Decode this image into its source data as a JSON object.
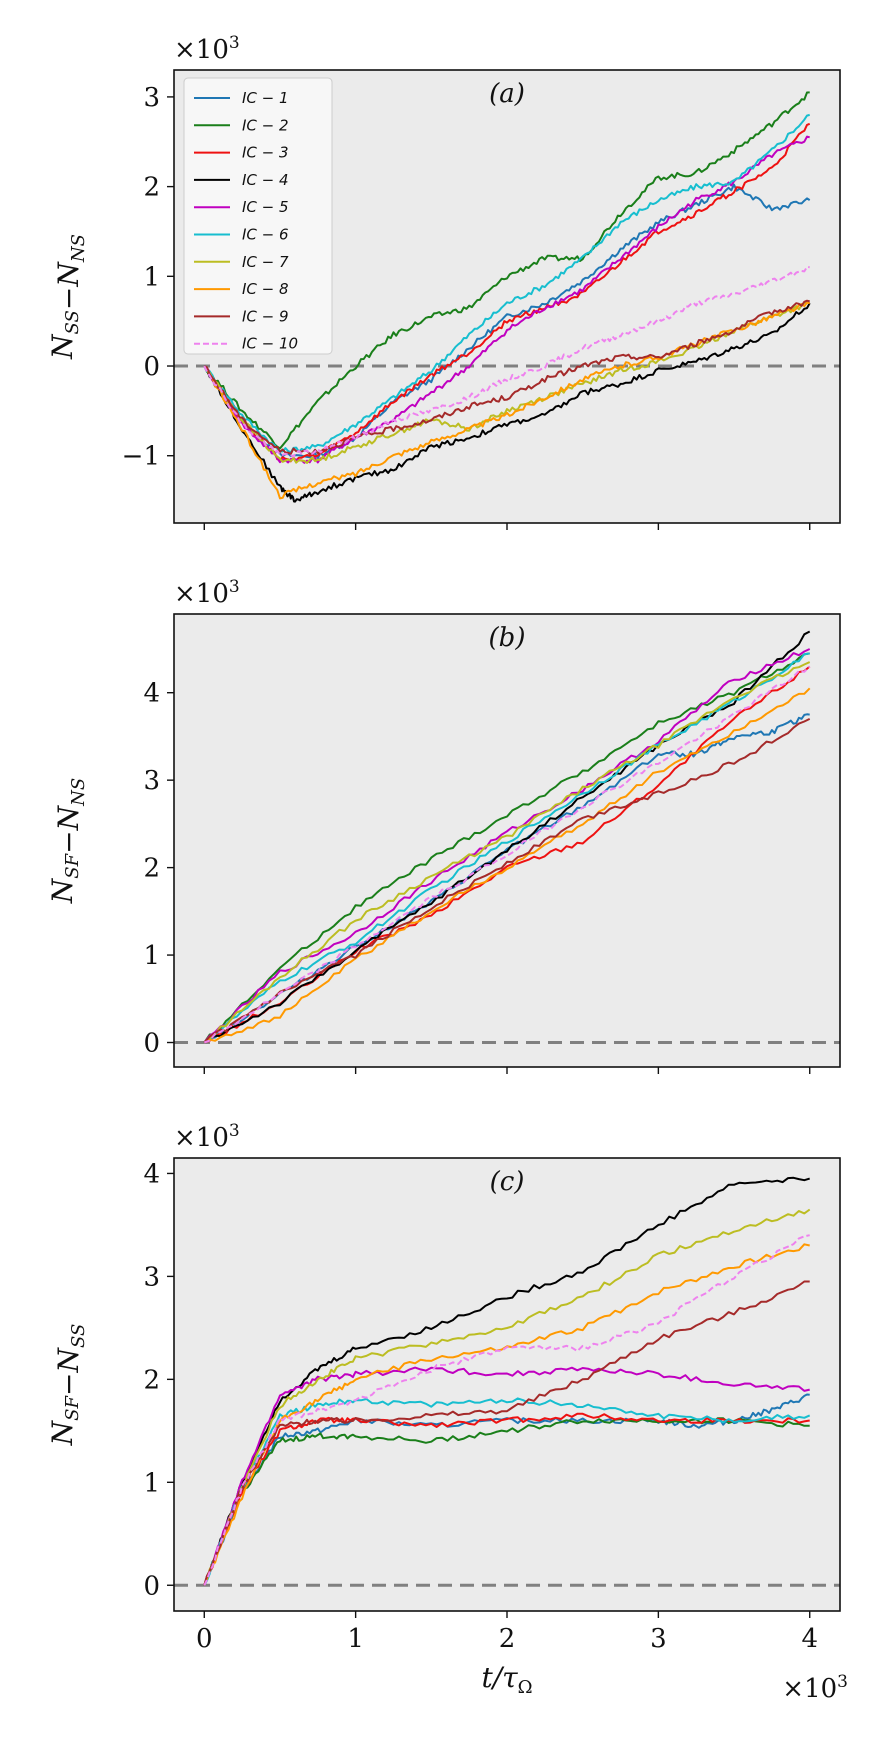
{
  "chart_data": [
    {
      "type": "line",
      "panel_label": "(a)",
      "ylabel": "N_SS − N_NS",
      "xlim": [
        -0.2,
        4.2
      ],
      "ylim": [
        -1.75,
        3.3
      ],
      "yticks": [
        -1,
        0,
        1,
        2,
        3
      ],
      "y_multiplier": "×10³",
      "x_scale_note": "×10³",
      "legend_position": "top-left",
      "reference_line": 0,
      "series": [
        {
          "name": "IC-1",
          "color": "#1f77b4",
          "x": [
            0,
            0.25,
            0.5,
            0.75,
            1.0,
            1.25,
            1.5,
            1.75,
            2.0,
            2.25,
            2.5,
            2.75,
            3.0,
            3.25,
            3.5,
            3.75,
            4.0
          ],
          "values": [
            0,
            -0.6,
            -1.0,
            -1.0,
            -0.8,
            -0.4,
            -0.15,
            0.2,
            0.55,
            0.7,
            0.95,
            1.3,
            1.6,
            1.8,
            2.0,
            1.75,
            1.85
          ]
        },
        {
          "name": "IC-2",
          "color": "#1a7f1a",
          "x": [
            0,
            0.25,
            0.5,
            0.75,
            1.0,
            1.25,
            1.5,
            1.75,
            2.0,
            2.25,
            2.5,
            2.75,
            3.0,
            3.25,
            3.5,
            3.75,
            4.0
          ],
          "values": [
            0,
            -0.5,
            -0.9,
            -0.4,
            0.0,
            0.35,
            0.55,
            0.65,
            1.0,
            1.2,
            1.2,
            1.7,
            2.1,
            2.15,
            2.4,
            2.7,
            3.05
          ]
        },
        {
          "name": "IC-3",
          "color": "#ee1111",
          "x": [
            0,
            0.25,
            0.5,
            0.75,
            1.0,
            1.25,
            1.5,
            1.75,
            2.0,
            2.25,
            2.5,
            2.75,
            3.0,
            3.25,
            3.5,
            3.75,
            4.0
          ],
          "values": [
            0,
            -0.6,
            -1.05,
            -1.0,
            -0.75,
            -0.4,
            -0.1,
            0.15,
            0.5,
            0.65,
            0.8,
            1.15,
            1.5,
            1.7,
            1.95,
            2.2,
            2.7
          ]
        },
        {
          "name": "IC-4",
          "color": "#000000",
          "x": [
            0,
            0.25,
            0.5,
            0.6,
            0.75,
            1.0,
            1.25,
            1.5,
            1.75,
            2.0,
            2.25,
            2.5,
            2.75,
            3.0,
            3.25,
            3.5,
            3.75,
            4.0
          ],
          "values": [
            0,
            -0.7,
            -1.35,
            -1.5,
            -1.4,
            -1.25,
            -1.15,
            -0.9,
            -0.8,
            -0.65,
            -0.55,
            -0.3,
            -0.2,
            -0.05,
            0.05,
            0.2,
            0.35,
            0.7
          ]
        },
        {
          "name": "IC-5",
          "color": "#c000c0",
          "x": [
            0,
            0.25,
            0.5,
            0.75,
            1.0,
            1.25,
            1.5,
            1.75,
            2.0,
            2.25,
            2.5,
            2.75,
            3.0,
            3.25,
            3.5,
            3.75,
            4.0
          ],
          "values": [
            0,
            -0.65,
            -1.05,
            -1.05,
            -0.8,
            -0.6,
            -0.3,
            0.0,
            0.4,
            0.65,
            0.85,
            1.2,
            1.55,
            1.85,
            2.05,
            2.35,
            2.55
          ]
        },
        {
          "name": "IC-6",
          "color": "#17becf",
          "x": [
            0,
            0.25,
            0.5,
            0.75,
            1.0,
            1.25,
            1.5,
            1.75,
            2.0,
            2.25,
            2.5,
            2.75,
            3.0,
            3.25,
            3.5,
            3.75,
            4.0
          ],
          "values": [
            0,
            -0.55,
            -0.95,
            -0.9,
            -0.65,
            -0.35,
            -0.05,
            0.35,
            0.7,
            0.9,
            1.2,
            1.6,
            1.85,
            2.0,
            2.05,
            2.4,
            2.8
          ]
        },
        {
          "name": "IC-7",
          "color": "#bcbd22",
          "x": [
            0,
            0.25,
            0.5,
            0.75,
            1.0,
            1.25,
            1.5,
            1.75,
            2.0,
            2.25,
            2.5,
            2.75,
            3.0,
            3.25,
            3.5,
            3.75,
            4.0
          ],
          "values": [
            0,
            -0.6,
            -1.05,
            -1.05,
            -0.9,
            -0.75,
            -0.6,
            -0.7,
            -0.5,
            -0.35,
            -0.2,
            -0.05,
            0.05,
            0.2,
            0.4,
            0.55,
            0.7
          ]
        },
        {
          "name": "IC-8",
          "color": "#ff9900",
          "x": [
            0,
            0.25,
            0.5,
            0.75,
            1.0,
            1.25,
            1.5,
            1.75,
            2.0,
            2.25,
            2.5,
            2.75,
            3.0,
            3.25,
            3.5,
            3.75,
            4.0
          ],
          "values": [
            0,
            -0.7,
            -1.45,
            -1.3,
            -1.2,
            -1.0,
            -0.85,
            -0.7,
            -0.55,
            -0.35,
            -0.15,
            0.0,
            0.1,
            0.25,
            0.4,
            0.55,
            0.7
          ]
        },
        {
          "name": "IC-9",
          "color": "#a52a2a",
          "x": [
            0,
            0.25,
            0.5,
            0.75,
            1.0,
            1.25,
            1.5,
            1.75,
            2.0,
            2.25,
            2.5,
            2.75,
            3.0,
            3.25,
            3.5,
            3.75,
            4.0
          ],
          "values": [
            0,
            -0.6,
            -0.95,
            -0.95,
            -0.8,
            -0.7,
            -0.6,
            -0.45,
            -0.35,
            -0.15,
            0.0,
            0.1,
            0.1,
            0.25,
            0.4,
            0.6,
            0.72
          ]
        },
        {
          "name": "IC-10",
          "color": "#ee82ee",
          "dashed": true,
          "x": [
            0,
            0.25,
            0.5,
            0.75,
            1.0,
            1.25,
            1.5,
            1.75,
            2.0,
            2.25,
            2.5,
            2.75,
            3.0,
            3.25,
            3.5,
            3.75,
            4.0
          ],
          "values": [
            0,
            -0.65,
            -1.0,
            -0.95,
            -0.8,
            -0.6,
            -0.5,
            -0.35,
            -0.15,
            0.0,
            0.2,
            0.35,
            0.5,
            0.7,
            0.8,
            0.95,
            1.1
          ]
        }
      ]
    },
    {
      "type": "line",
      "panel_label": "(b)",
      "ylabel": "N_SF − N_NS",
      "xlim": [
        -0.2,
        4.2
      ],
      "ylim": [
        -0.28,
        4.9
      ],
      "yticks": [
        0,
        1,
        2,
        3,
        4
      ],
      "y_multiplier": "×10³",
      "reference_line": 0,
      "series": [
        {
          "name": "IC-1",
          "color": "#1f77b4",
          "x": [
            0,
            0.5,
            1.0,
            1.5,
            2.0,
            2.5,
            3.0,
            3.25,
            3.5,
            3.75,
            4.0
          ],
          "values": [
            0,
            0.55,
            1.1,
            1.6,
            2.2,
            2.7,
            3.3,
            3.3,
            3.5,
            3.55,
            3.75
          ]
        },
        {
          "name": "IC-2",
          "color": "#1a7f1a",
          "x": [
            0,
            0.5,
            1.0,
            1.5,
            2.0,
            2.5,
            3.0,
            3.5,
            4.0
          ],
          "values": [
            0,
            0.85,
            1.55,
            2.1,
            2.6,
            3.1,
            3.65,
            4.0,
            4.45
          ]
        },
        {
          "name": "IC-3",
          "color": "#ee1111",
          "x": [
            0,
            0.5,
            1.0,
            1.5,
            2.0,
            2.5,
            3.0,
            3.5,
            4.0
          ],
          "values": [
            0,
            0.45,
            1.05,
            1.45,
            2.0,
            2.3,
            2.95,
            3.7,
            4.3
          ]
        },
        {
          "name": "IC-4",
          "color": "#000000",
          "x": [
            0,
            0.5,
            1.0,
            1.5,
            2.0,
            2.5,
            3.0,
            3.5,
            4.0
          ],
          "values": [
            0,
            0.45,
            1.05,
            1.6,
            2.2,
            2.8,
            3.4,
            3.9,
            4.7
          ]
        },
        {
          "name": "IC-5",
          "color": "#c000c0",
          "x": [
            0,
            0.5,
            1.0,
            1.5,
            2.0,
            2.5,
            3.0,
            3.5,
            4.0
          ],
          "values": [
            0,
            0.8,
            1.25,
            1.85,
            2.4,
            2.9,
            3.45,
            4.15,
            4.5
          ]
        },
        {
          "name": "IC-6",
          "color": "#17becf",
          "x": [
            0,
            0.5,
            1.0,
            1.5,
            2.0,
            2.5,
            3.0,
            3.5,
            4.0
          ],
          "values": [
            0,
            0.7,
            1.15,
            1.75,
            2.3,
            2.85,
            3.4,
            3.9,
            4.45
          ]
        },
        {
          "name": "IC-7",
          "color": "#bcbd22",
          "x": [
            0,
            0.5,
            1.0,
            1.5,
            2.0,
            2.5,
            3.0,
            3.5,
            4.0
          ],
          "values": [
            0,
            0.75,
            1.4,
            1.9,
            2.35,
            2.9,
            3.4,
            3.95,
            4.35
          ]
        },
        {
          "name": "IC-8",
          "color": "#ff9900",
          "x": [
            0,
            0.5,
            1.0,
            1.5,
            2.0,
            2.5,
            3.0,
            3.5,
            4.0
          ],
          "values": [
            0,
            0.3,
            0.95,
            1.5,
            2.0,
            2.5,
            3.1,
            3.55,
            4.05
          ]
        },
        {
          "name": "IC-9",
          "color": "#a52a2a",
          "x": [
            0,
            0.5,
            1.0,
            1.5,
            2.0,
            2.5,
            3.0,
            3.5,
            4.0
          ],
          "values": [
            0,
            0.55,
            1.0,
            1.55,
            2.05,
            2.55,
            2.85,
            3.2,
            3.7
          ]
        },
        {
          "name": "IC-10",
          "color": "#ee82ee",
          "dashed": true,
          "x": [
            0,
            0.5,
            1.0,
            1.5,
            2.0,
            2.5,
            3.0,
            3.5,
            4.0
          ],
          "values": [
            0,
            0.55,
            1.1,
            1.65,
            2.15,
            2.7,
            3.2,
            3.75,
            4.3
          ]
        }
      ]
    },
    {
      "type": "line",
      "panel_label": "(c)",
      "xlabel": "t/τ_Ω",
      "ylabel": "N_SF − N_SS",
      "xlim": [
        -0.2,
        4.2
      ],
      "ylim": [
        -0.25,
        4.15
      ],
      "yticks": [
        0,
        1,
        2,
        3,
        4
      ],
      "xticks": [
        0,
        1,
        2,
        3,
        4
      ],
      "y_multiplier": "×10³",
      "x_multiplier": "×10³",
      "reference_line": 0,
      "series": [
        {
          "name": "IC-1",
          "color": "#1f77b4",
          "x": [
            0,
            0.25,
            0.5,
            0.75,
            1.0,
            1.5,
            2.0,
            2.5,
            3.0,
            3.25,
            3.5,
            3.75,
            4.0
          ],
          "values": [
            0,
            0.9,
            1.45,
            1.5,
            1.6,
            1.55,
            1.6,
            1.6,
            1.6,
            1.55,
            1.6,
            1.7,
            1.85
          ]
        },
        {
          "name": "IC-2",
          "color": "#1a7f1a",
          "x": [
            0,
            0.25,
            0.5,
            0.75,
            1.0,
            1.5,
            2.0,
            2.5,
            3.0,
            3.5,
            4.0
          ],
          "values": [
            0,
            0.9,
            1.4,
            1.45,
            1.45,
            1.4,
            1.5,
            1.6,
            1.6,
            1.6,
            1.55
          ]
        },
        {
          "name": "IC-3",
          "color": "#ee1111",
          "x": [
            0,
            0.25,
            0.5,
            0.75,
            1.0,
            1.5,
            2.0,
            2.5,
            3.0,
            3.5,
            4.0
          ],
          "values": [
            0,
            0.9,
            1.5,
            1.6,
            1.6,
            1.55,
            1.6,
            1.65,
            1.6,
            1.6,
            1.6
          ]
        },
        {
          "name": "IC-4",
          "color": "#000000",
          "x": [
            0,
            0.25,
            0.5,
            0.75,
            1.0,
            1.5,
            2.0,
            2.5,
            3.0,
            3.5,
            4.0
          ],
          "values": [
            0,
            1.0,
            1.8,
            2.1,
            2.3,
            2.5,
            2.8,
            3.05,
            3.5,
            3.9,
            3.95
          ]
        },
        {
          "name": "IC-5",
          "color": "#c000c0",
          "x": [
            0,
            0.25,
            0.5,
            0.75,
            1.0,
            1.5,
            2.0,
            2.5,
            3.0,
            3.5,
            4.0
          ],
          "values": [
            0,
            1.0,
            1.85,
            2.0,
            2.05,
            2.1,
            2.05,
            2.1,
            2.05,
            1.95,
            1.9
          ]
        },
        {
          "name": "IC-6",
          "color": "#17becf",
          "x": [
            0,
            0.25,
            0.5,
            0.75,
            1.0,
            1.5,
            2.0,
            2.5,
            3.0,
            3.5,
            4.0
          ],
          "values": [
            0,
            0.95,
            1.65,
            1.75,
            1.8,
            1.75,
            1.8,
            1.75,
            1.65,
            1.6,
            1.65
          ]
        },
        {
          "name": "IC-7",
          "color": "#bcbd22",
          "x": [
            0,
            0.25,
            0.5,
            0.75,
            1.0,
            1.5,
            2.0,
            2.5,
            3.0,
            3.5,
            4.0
          ],
          "values": [
            0,
            0.95,
            1.75,
            2.0,
            2.2,
            2.35,
            2.5,
            2.8,
            3.2,
            3.45,
            3.65
          ]
        },
        {
          "name": "IC-8",
          "color": "#ff9900",
          "x": [
            0,
            0.25,
            0.5,
            0.75,
            1.0,
            1.5,
            2.0,
            2.5,
            3.0,
            3.5,
            4.0
          ],
          "values": [
            0,
            0.85,
            1.6,
            1.8,
            2.0,
            2.2,
            2.3,
            2.5,
            2.85,
            3.1,
            3.3
          ]
        },
        {
          "name": "IC-9",
          "color": "#a52a2a",
          "x": [
            0,
            0.25,
            0.5,
            0.75,
            1.0,
            1.5,
            2.0,
            2.5,
            3.0,
            3.5,
            4.0
          ],
          "values": [
            0,
            0.95,
            1.55,
            1.6,
            1.6,
            1.65,
            1.7,
            2.0,
            2.4,
            2.65,
            2.95
          ]
        },
        {
          "name": "IC-10",
          "color": "#ee82ee",
          "dashed": true,
          "x": [
            0,
            0.25,
            0.5,
            0.75,
            1.0,
            1.5,
            2.0,
            2.5,
            3.0,
            3.5,
            4.0
          ],
          "values": [
            0,
            0.95,
            1.6,
            1.7,
            1.8,
            2.1,
            2.3,
            2.3,
            2.55,
            3.0,
            3.4
          ]
        }
      ]
    }
  ],
  "legend": {
    "entries": [
      "IC − 1",
      "IC − 2",
      "IC − 3",
      "IC − 4",
      "IC − 5",
      "IC − 6",
      "IC − 7",
      "IC − 8",
      "IC − 9",
      "IC − 10"
    ]
  }
}
